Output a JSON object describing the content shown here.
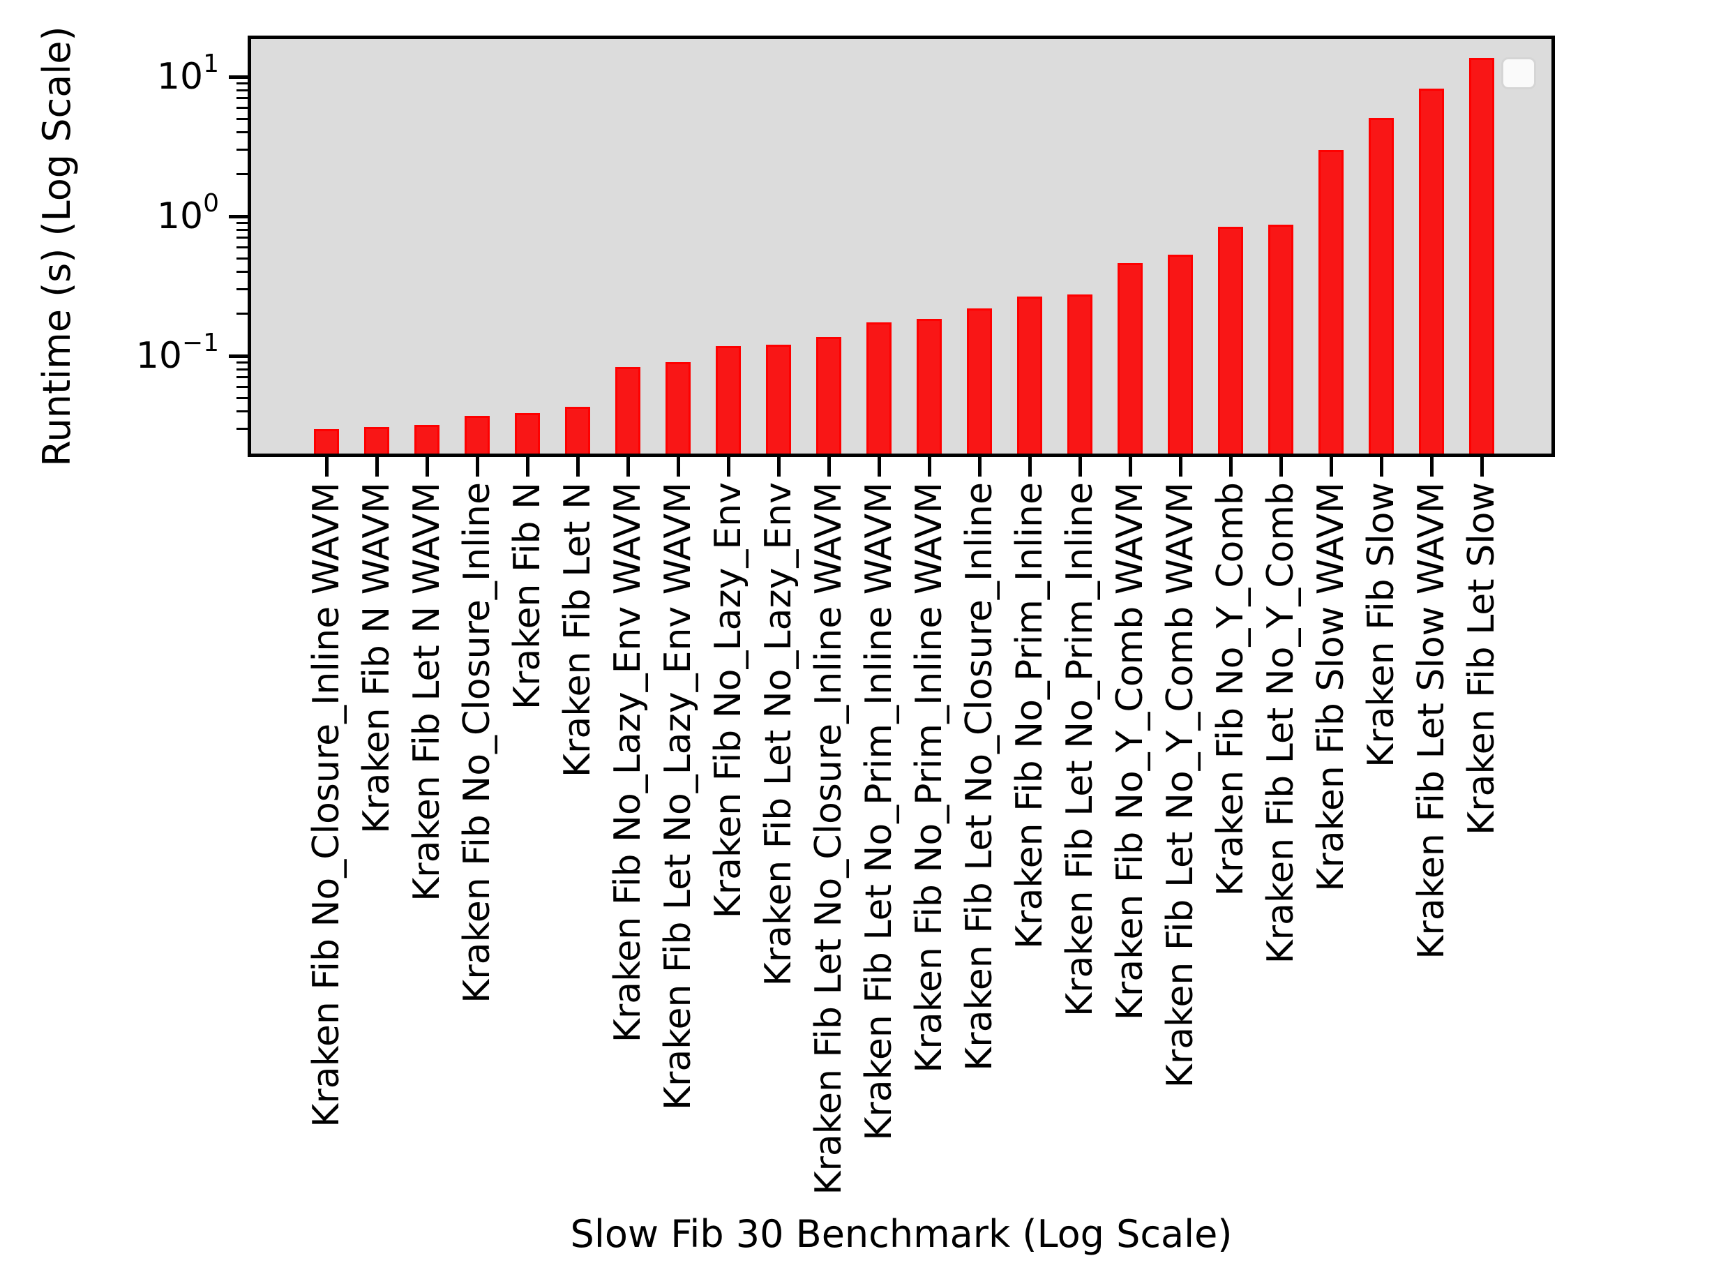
{
  "chart_data": {
    "type": "bar",
    "title": "",
    "xlabel": "Slow Fib 30 Benchmark (Log Scale)",
    "ylabel": "Runtime (s) (Log Scale)",
    "yscale": "log",
    "ylim": [
      0.02,
      18.6
    ],
    "grid": false,
    "legend": {
      "visible": true,
      "position": "upper right",
      "entries": []
    },
    "colors": {
      "bar_face": "#f91616",
      "bar_edge": "#fe0000",
      "plot_background": "#dcdcdc",
      "figure_background": "#ffffff",
      "axis": "#000000"
    },
    "y_major_ticks": [
      {
        "base": "10",
        "exp": "1",
        "value": 10
      },
      {
        "base": "10",
        "exp": "0",
        "value": 1
      },
      {
        "base": "10",
        "exp": "−1",
        "value": 0.1
      }
    ],
    "y_minor_tick_values": [
      0.03,
      0.04,
      0.05,
      0.06,
      0.07,
      0.08,
      0.09,
      0.2,
      0.3,
      0.4,
      0.5,
      0.6,
      0.7,
      0.8,
      0.9,
      2,
      3,
      4,
      5,
      6,
      7,
      8,
      9
    ],
    "categories": [
      "Kraken Fib No_Closure_Inline WAVM",
      "Kraken Fib N WAVM",
      "Kraken Fib Let N WAVM",
      "Kraken Fib No_Closure_Inline",
      "Kraken Fib N",
      "Kraken Fib Let N",
      "Kraken Fib No_Lazy_Env WAVM",
      "Kraken Fib Let No_Lazy_Env WAVM",
      "Kraken Fib No_Lazy_Env",
      "Kraken Fib Let No_Lazy_Env",
      "Kraken Fib Let No_Closure_Inline WAVM",
      "Kraken Fib Let No_Prim_Inline WAVM",
      "Kraken Fib No_Prim_Inline WAVM",
      "Kraken Fib Let No_Closure_Inline",
      "Kraken Fib No_Prim_Inline",
      "Kraken Fib Let No_Prim_Inline",
      "Kraken Fib No_Y_Comb WAVM",
      "Kraken Fib Let No_Y_Comb WAVM",
      "Kraken Fib No_Y_Comb",
      "Kraken Fib Let No_Y_Comb",
      "Kraken Fib Slow WAVM",
      "Kraken Fib Slow",
      "Kraken Fib Let Slow WAVM",
      "Kraken Fib Let Slow"
    ],
    "values": [
      0.03,
      0.031,
      0.032,
      0.037,
      0.039,
      0.043,
      0.083,
      0.09,
      0.117,
      0.12,
      0.136,
      0.174,
      0.184,
      0.22,
      0.265,
      0.275,
      0.46,
      0.53,
      0.84,
      0.87,
      3.0,
      5.1,
      8.2,
      13.6
    ]
  }
}
